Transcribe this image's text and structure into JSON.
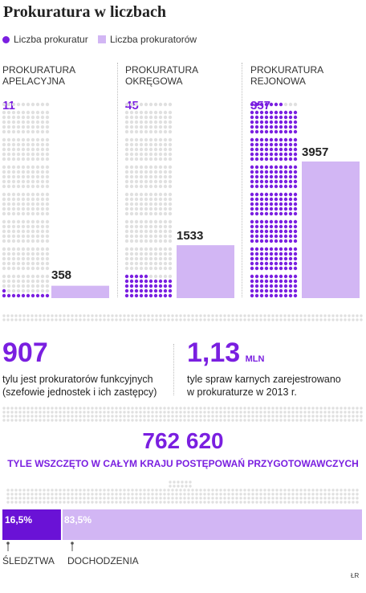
{
  "title": "Prokuratura w liczbach",
  "legend": {
    "prokuratur_label": "Liczba prokuratur",
    "prokuratorow_label": "Liczba prokuratorów"
  },
  "colors": {
    "prokuratur": "#7a1fe0",
    "prokuratorow": "#d2b6f4",
    "placeholder": "#e0e0e0",
    "dark_segment": "#6a12d6",
    "light_segment": "#d2b6f4"
  },
  "chart_data": [
    {
      "type": "bar",
      "categories": [
        "PROKURATURA APELACYJNA",
        "PROKURATURA OKRĘGOWA",
        "PROKURATURA REJONOWA"
      ],
      "series": [
        {
          "name": "Liczba prokuratur",
          "values": [
            11,
            45,
            357
          ]
        },
        {
          "name": "Liczba prokuratorów",
          "values": [
            358,
            1533,
            3957
          ]
        }
      ],
      "legend": "top-left"
    },
    {
      "type": "bar",
      "categories": [
        "ŚLEDZTWA",
        "DOCHODZENIA"
      ],
      "values": [
        16.5,
        83.5
      ],
      "value_labels": [
        "16,5%",
        "83,5%"
      ]
    }
  ],
  "categories": [
    {
      "line1": "PROKURATURA",
      "line2": "APELACYJNA",
      "count": "11",
      "officers": "358"
    },
    {
      "line1": "PROKURATURA",
      "line2": "OKRĘGOWA",
      "count": "45",
      "officers": "1533"
    },
    {
      "line1": "PROKURATURA",
      "line2": "REJONOWA",
      "count": "357",
      "officers": "3957"
    }
  ],
  "stats": {
    "functional": {
      "value": "907",
      "desc1": "tylu jest prokuratorów funkcyjnych",
      "desc2": "(szefowie jednostek i ich zastępcy)"
    },
    "cases": {
      "value": "1,13",
      "unit": "MLN",
      "desc1": "tyle spraw karnych zarejestrowano",
      "desc2": "w prokuraturze w 2013 r."
    }
  },
  "total": {
    "value": "762 620",
    "label": "TYLE WSZCZĘTO W CAŁYM KRAJU POSTĘPOWAŃ PRZYGOTOWAWCZYCH"
  },
  "split": {
    "sledztwa_pct": "16,5%",
    "dochodzenia_pct": "83,5%",
    "sledztwa_label": "ŚLEDZTWA",
    "dochodzenia_label": "DOCHODZENIA"
  },
  "credit": "ŁR"
}
